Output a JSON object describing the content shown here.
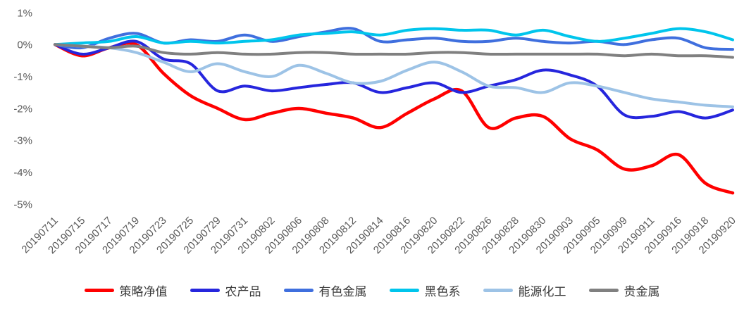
{
  "chart_data": {
    "type": "line",
    "title": "",
    "xlabel": "",
    "ylabel": "",
    "ylim": [
      -5,
      1
    ],
    "grid": false,
    "legend_position": "bottom",
    "axis_label_color": "#595959",
    "y_ticks": [
      {
        "value": 1,
        "label": "1%"
      },
      {
        "value": 0,
        "label": "0%"
      },
      {
        "value": -1,
        "label": "-1%"
      },
      {
        "value": -2,
        "label": "-2%"
      },
      {
        "value": -3,
        "label": "-3%"
      },
      {
        "value": -4,
        "label": "-4%"
      },
      {
        "value": -5,
        "label": "-5%"
      }
    ],
    "x_labels": [
      "20190711",
      "20190715",
      "20190717",
      "20190719",
      "20190723",
      "20190725",
      "20190729",
      "20190731",
      "20190802",
      "20190806",
      "20190808",
      "20190812",
      "20190814",
      "20190816",
      "20190820",
      "20190822",
      "20190826",
      "20190828",
      "20190830",
      "20190903",
      "20190905",
      "20190909",
      "20190911",
      "20190916",
      "20190918",
      "20190920"
    ],
    "series": [
      {
        "name": "策略净值",
        "slug": "strategy-net-value",
        "color": "#FF0000",
        "values": [
          0,
          -0.35,
          -0.1,
          0.0,
          -0.9,
          -1.6,
          -2.0,
          -2.35,
          -2.15,
          -2.0,
          -2.15,
          -2.3,
          -2.6,
          -2.15,
          -1.7,
          -1.45,
          -2.6,
          -2.3,
          -2.25,
          -2.95,
          -3.3,
          -3.9,
          -3.8,
          -3.45,
          -4.35,
          -4.65
        ]
      },
      {
        "name": "农产品",
        "slug": "agricultural-products",
        "color": "#2626DD",
        "values": [
          0,
          -0.3,
          -0.1,
          0.1,
          -0.45,
          -0.6,
          -1.45,
          -1.3,
          -1.45,
          -1.35,
          -1.25,
          -1.2,
          -1.5,
          -1.35,
          -1.2,
          -1.5,
          -1.3,
          -1.1,
          -0.8,
          -0.95,
          -1.3,
          -2.2,
          -2.25,
          -2.1,
          -2.3,
          -2.05
        ]
      },
      {
        "name": "有色金属",
        "slug": "nonferrous-metals",
        "color": "#3F6FDE",
        "values": [
          0,
          -0.1,
          0.2,
          0.35,
          0.05,
          0.15,
          0.1,
          0.3,
          0.1,
          0.25,
          0.4,
          0.5,
          0.1,
          0.15,
          0.2,
          0.1,
          0.1,
          0.2,
          0.1,
          0.05,
          0.1,
          0.0,
          0.15,
          0.2,
          -0.1,
          -0.15
        ]
      },
      {
        "name": "黑色系",
        "slug": "ferrous-black-series",
        "color": "#00C5EC",
        "values": [
          0,
          0.05,
          0.1,
          0.25,
          0.05,
          0.1,
          0.05,
          0.1,
          0.15,
          0.3,
          0.35,
          0.4,
          0.3,
          0.45,
          0.5,
          0.45,
          0.45,
          0.3,
          0.45,
          0.25,
          0.1,
          0.2,
          0.35,
          0.5,
          0.4,
          0.15
        ]
      },
      {
        "name": "能源化工",
        "slug": "energy-chemicals",
        "color": "#9DC3E6",
        "values": [
          0,
          -0.05,
          -0.1,
          -0.25,
          -0.55,
          -0.85,
          -0.6,
          -0.85,
          -1.0,
          -0.65,
          -0.9,
          -1.2,
          -1.15,
          -0.8,
          -0.55,
          -0.85,
          -1.3,
          -1.35,
          -1.5,
          -1.2,
          -1.3,
          -1.5,
          -1.7,
          -1.8,
          -1.9,
          -1.95
        ]
      },
      {
        "name": "贵金属",
        "slug": "precious-metals",
        "color": "#808080",
        "values": [
          0,
          -0.05,
          -0.1,
          -0.05,
          -0.25,
          -0.3,
          -0.25,
          -0.3,
          -0.3,
          -0.25,
          -0.25,
          -0.3,
          -0.3,
          -0.3,
          -0.25,
          -0.25,
          -0.3,
          -0.3,
          -0.3,
          -0.3,
          -0.3,
          -0.35,
          -0.3,
          -0.35,
          -0.35,
          -0.4
        ]
      }
    ]
  }
}
